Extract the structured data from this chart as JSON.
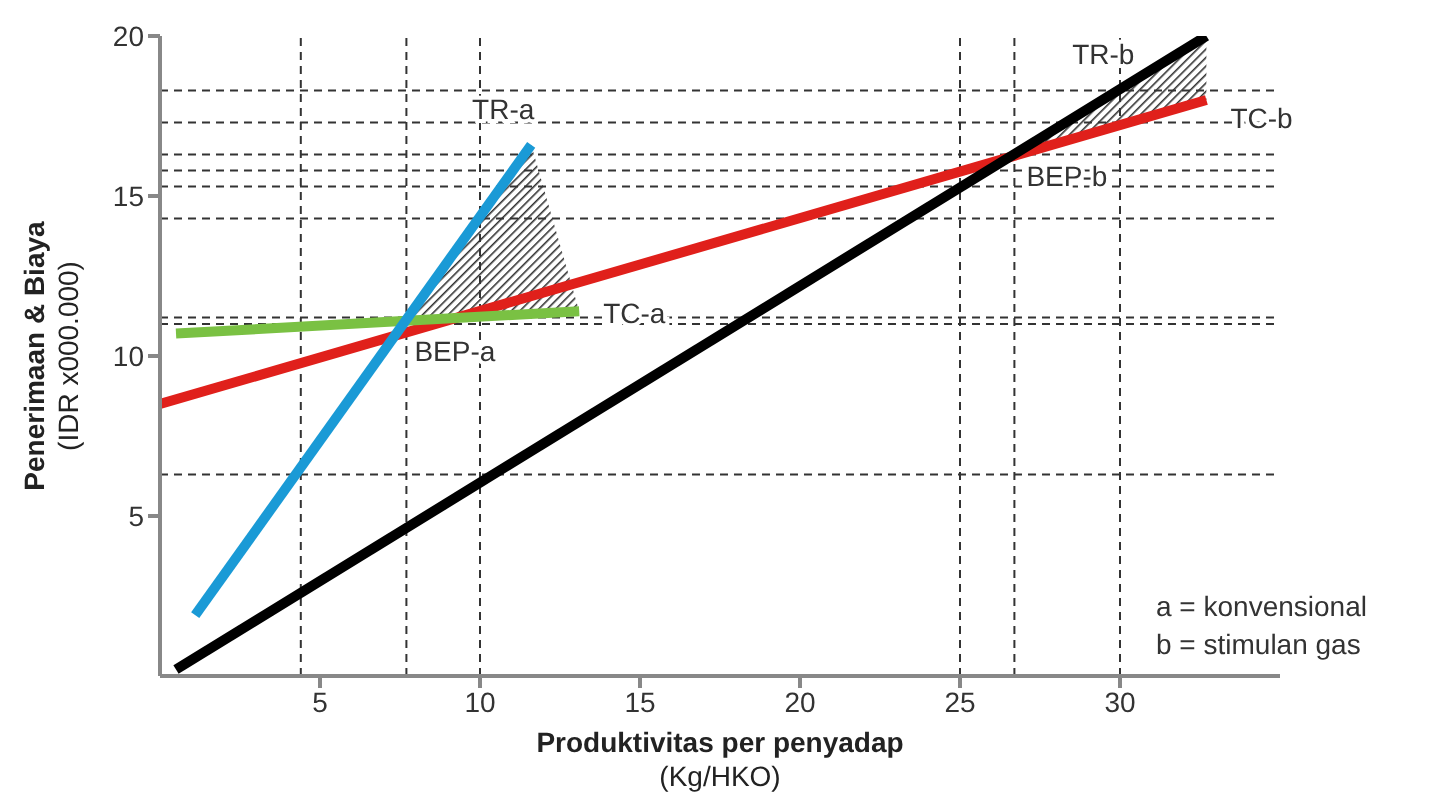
{
  "chart_data": {
    "type": "line",
    "xlabel": "Produktivitas per penyadap\n(Kg/HKO)",
    "ylabel": "Penerimaan & Biaya\n(IDR x000.000)",
    "xlim": [
      0,
      35
    ],
    "xticks": [
      5,
      10,
      15,
      20,
      25,
      30
    ],
    "ylim": [
      0,
      20
    ],
    "yticks": [
      5,
      10,
      15,
      20
    ],
    "marker": "none",
    "line_style": "solid",
    "series": [
      {
        "name": "TC-b",
        "color": "#e0201b",
        "x": [
          0,
          32.7
        ],
        "values": [
          8.5,
          18.0
        ]
      },
      {
        "name": "TR-b",
        "color": "#000000",
        "x": [
          0.5,
          32.7
        ],
        "values": [
          0.2,
          20.0
        ]
      },
      {
        "name": "TC-a",
        "color": "#7ac143",
        "x": [
          0.5,
          13.1
        ],
        "values": [
          10.7,
          11.4
        ]
      },
      {
        "name": "TR-a",
        "color": "#1a9ad6",
        "x": [
          1.1,
          11.6
        ],
        "values": [
          1.9,
          16.6
        ]
      }
    ],
    "ref_lines": [
      {
        "axis": "x",
        "value": 4.4,
        "color": "#333333",
        "line_style": "dashed"
      },
      {
        "axis": "x",
        "value": 7.7,
        "color": "#333333",
        "line_style": "dashed"
      },
      {
        "axis": "x",
        "value": 10,
        "color": "#333333",
        "line_style": "dashed"
      },
      {
        "axis": "x",
        "value": 25,
        "color": "#333333",
        "line_style": "dashed"
      },
      {
        "axis": "x",
        "value": 26.7,
        "color": "#333333",
        "line_style": "dashed"
      },
      {
        "axis": "x",
        "value": 30,
        "color": "#333333",
        "line_style": "dashed"
      },
      {
        "axis": "y",
        "value": 18.3,
        "color": "#333333",
        "line_style": "dashed"
      },
      {
        "axis": "y",
        "value": 17.3,
        "color": "#333333",
        "line_style": "dashed"
      },
      {
        "axis": "y",
        "value": 16.3,
        "color": "#333333",
        "line_style": "dashed"
      },
      {
        "axis": "y",
        "value": 15.8,
        "color": "#333333",
        "line_style": "dashed"
      },
      {
        "axis": "y",
        "value": 15.3,
        "color": "#333333",
        "line_style": "dashed"
      },
      {
        "axis": "y",
        "value": 14.3,
        "color": "#333333",
        "line_style": "dashed"
      },
      {
        "axis": "y",
        "value": 11.2,
        "color": "#333333",
        "line_style": "dashed"
      },
      {
        "axis": "y",
        "value": 11.0,
        "color": "#333333",
        "line_style": "dashed"
      },
      {
        "axis": "y",
        "value": 6.3,
        "color": "#333333",
        "line_style": "dashed"
      }
    ],
    "annotations": [
      {
        "text": "BEP-a",
        "x": 7.7,
        "y": 11.1
      },
      {
        "text": "BEP-b",
        "x": 26.7,
        "y": 16.3
      },
      "a = konvensional",
      "b = stimulan gas"
    ]
  }
}
